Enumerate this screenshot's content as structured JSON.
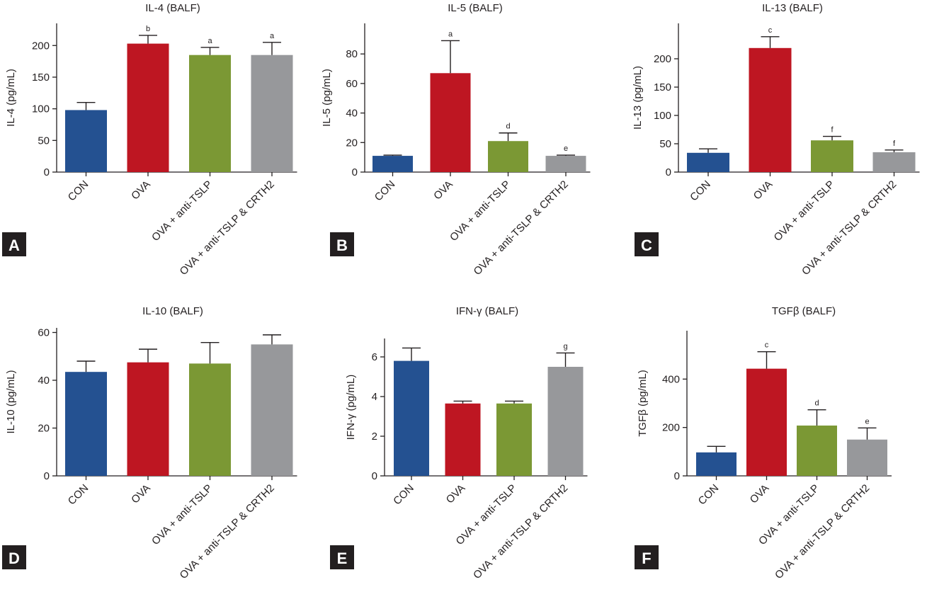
{
  "colors": {
    "CON": "#245191",
    "OVA": "#be1622",
    "OVA + anti-TSLP": "#7b9834",
    "OVA + anti-TSLP & CRTH2": "#97989b",
    "axis": "#231f20",
    "panel_label_bg": "#231f20",
    "panel_label_text": "#ffffff"
  },
  "chart_data": [
    {
      "panel": "A",
      "type": "bar",
      "title": "IL-4 (BALF)",
      "ylabel": "IL-4 (pg/mL)",
      "categories": [
        "CON",
        "OVA",
        "OVA + anti-TSLP",
        "OVA + anti-TSLP & CRTH2"
      ],
      "values": [
        98,
        203,
        185,
        185
      ],
      "errors": [
        12,
        13,
        12,
        20
      ],
      "annotations": [
        "",
        "b",
        "a",
        "a"
      ],
      "ylim": [
        0,
        235
      ],
      "yticks": [
        0,
        50,
        100,
        150,
        200
      ]
    },
    {
      "panel": "B",
      "type": "bar",
      "title": "IL-5 (BALF)",
      "ylabel": "IL-5 (pg/mL)",
      "categories": [
        "CON",
        "OVA",
        "OVA + anti-TSLP",
        "OVA + anti-TSLP & CRTH2"
      ],
      "values": [
        11,
        67,
        21,
        11
      ],
      "errors": [
        0.5,
        22,
        5.5,
        0.5
      ],
      "annotations": [
        "",
        "a",
        "d",
        "e"
      ],
      "ylim": [
        0,
        94
      ],
      "yticks": [
        0,
        20,
        40,
        60,
        80
      ]
    },
    {
      "panel": "C",
      "type": "bar",
      "title": "IL-13 (BALF)",
      "ylabel": "IL-13 (pg/mL)",
      "categories": [
        "CON",
        "OVA",
        "OVA + anti-TSLP",
        "OVA + anti-TSLP & CRTH2"
      ],
      "values": [
        34,
        219,
        56,
        35
      ],
      "errors": [
        7,
        20,
        7,
        4
      ],
      "annotations": [
        "",
        "c",
        "f",
        "f"
      ],
      "ylim": [
        0,
        245
      ],
      "yticks": [
        0,
        50,
        100,
        150,
        200
      ]
    },
    {
      "panel": "D",
      "type": "bar",
      "title": "IL-10 (BALF)",
      "ylabel": "IL-10 (pg/mL)",
      "categories": [
        "CON",
        "OVA",
        "OVA + anti-TSLP",
        "OVA + anti-TSLP & CRTH2"
      ],
      "values": [
        43.5,
        47.5,
        47,
        55
      ],
      "errors": [
        4.5,
        5.5,
        8.8,
        4
      ],
      "annotations": [
        "",
        "",
        "",
        ""
      ],
      "ylim": [
        0,
        64
      ],
      "yticks": [
        0,
        20,
        40,
        60
      ]
    },
    {
      "panel": "E",
      "type": "bar",
      "title": "IFN-γ (BALF)",
      "ylabel": "IFN-γ (pg/mL)",
      "categories": [
        "CON",
        "OVA",
        "OVA + anti-TSLP",
        "OVA + anti-TSLP & CRTH2"
      ],
      "values": [
        5.8,
        3.65,
        3.65,
        5.5
      ],
      "errors": [
        0.65,
        0.12,
        0.12,
        0.7
      ],
      "annotations": [
        "",
        "",
        "",
        "g"
      ],
      "ylim": [
        0,
        7
      ],
      "yticks": [
        0,
        2,
        4,
        6
      ]
    },
    {
      "panel": "F",
      "type": "bar",
      "title": "TGFβ (BALF)",
      "ylabel": "TGFβ (pg/mL)",
      "categories": [
        "CON",
        "OVA",
        "OVA + anti-TSLP",
        "OVA + anti-TSLP & CRTH2"
      ],
      "values": [
        97,
        443,
        208,
        150
      ],
      "errors": [
        25,
        70,
        65,
        48
      ],
      "annotations": [
        "",
        "c",
        "d",
        "e"
      ],
      "ylim": [
        0,
        600
      ],
      "yticks": [
        0,
        200,
        400
      ]
    }
  ]
}
